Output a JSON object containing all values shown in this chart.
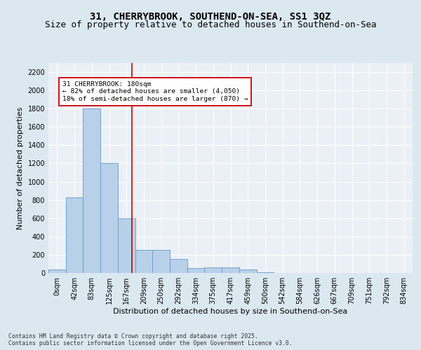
{
  "title_line1": "31, CHERRYBROOK, SOUTHEND-ON-SEA, SS1 3QZ",
  "title_line2": "Size of property relative to detached houses in Southend-on-Sea",
  "xlabel": "Distribution of detached houses by size in Southend-on-Sea",
  "ylabel": "Number of detached properties",
  "bar_labels": [
    "0sqm",
    "42sqm",
    "83sqm",
    "125sqm",
    "167sqm",
    "209sqm",
    "250sqm",
    "292sqm",
    "334sqm",
    "375sqm",
    "417sqm",
    "459sqm",
    "500sqm",
    "542sqm",
    "584sqm",
    "626sqm",
    "667sqm",
    "709sqm",
    "751sqm",
    "792sqm",
    "834sqm"
  ],
  "bar_values": [
    40,
    830,
    1800,
    1200,
    600,
    250,
    250,
    150,
    50,
    60,
    60,
    40,
    5,
    2,
    1,
    1,
    0,
    0,
    0,
    0,
    0
  ],
  "bar_color": "#b8d0e8",
  "bar_edge_color": "#6699cc",
  "annotation_text": "31 CHERRYBROOK: 180sqm\n← 82% of detached houses are smaller (4,050)\n18% of semi-detached houses are larger (870) →",
  "vline_x": 4.3,
  "vline_color": "#cc0000",
  "annotation_box_color": "#ffffff",
  "annotation_box_edge": "#cc0000",
  "ylim": [
    0,
    2300
  ],
  "yticks": [
    0,
    200,
    400,
    600,
    800,
    1000,
    1200,
    1400,
    1600,
    1800,
    2000,
    2200
  ],
  "footer_text": "Contains HM Land Registry data © Crown copyright and database right 2025.\nContains public sector information licensed under the Open Government Licence v3.0.",
  "bg_color": "#dce8f0",
  "plot_bg_color": "#eaf0f6",
  "grid_color": "#ffffff",
  "title_fontsize": 10,
  "subtitle_fontsize": 9,
  "axis_label_fontsize": 8,
  "tick_fontsize": 7
}
